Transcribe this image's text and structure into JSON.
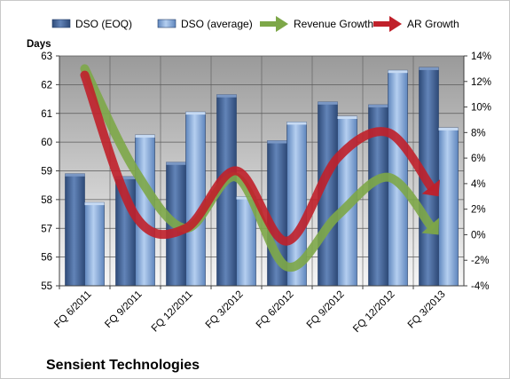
{
  "chart_data": {
    "type": "bar",
    "title": "Sensient Technologies",
    "ylabel": "Days",
    "categories": [
      "FQ 6/2011",
      "FQ 9/2011",
      "FQ 12/2011",
      "FQ 3/2012",
      "FQ 6/2012",
      "FQ 9/2012",
      "FQ 12/2012",
      "FQ 3/2013"
    ],
    "series": [
      {
        "name": "DSO (EOQ)",
        "kind": "bar",
        "axis": "left",
        "color": "#4a6a9c",
        "values": [
          58.9,
          58.8,
          59.3,
          61.65,
          60.05,
          61.4,
          61.3,
          62.6
        ]
      },
      {
        "name": "DSO (average)",
        "kind": "bar",
        "axis": "left",
        "color": "#8eb2dd",
        "values": [
          57.9,
          60.25,
          61.05,
          58.1,
          60.7,
          60.9,
          62.5,
          60.5
        ]
      },
      {
        "name": "Revenue Growth",
        "kind": "arrow",
        "axis": "right",
        "color": "#7da748",
        "values": [
          13.0,
          5.0,
          0.5,
          4.5,
          -2.5,
          1.5,
          4.5,
          0.0
        ]
      },
      {
        "name": "AR Growth",
        "kind": "arrow",
        "axis": "right",
        "color": "#c0202a",
        "values": [
          12.5,
          1.5,
          0.5,
          5.0,
          -0.5,
          6.0,
          8.0,
          3.0
        ]
      }
    ],
    "ylim": [
      55,
      63
    ],
    "yticks": [
      55,
      56,
      57,
      58,
      59,
      60,
      61,
      62,
      63
    ],
    "y2lim": [
      -4,
      14
    ],
    "y2ticks": [
      -4,
      -2,
      0,
      2,
      4,
      6,
      8,
      10,
      12,
      14
    ],
    "y2tick_labels": [
      "-4%",
      "-2%",
      "0%",
      "2%",
      "4%",
      "6%",
      "8%",
      "10%",
      "12%",
      "14%"
    ],
    "grid": true,
    "legend": "top"
  }
}
